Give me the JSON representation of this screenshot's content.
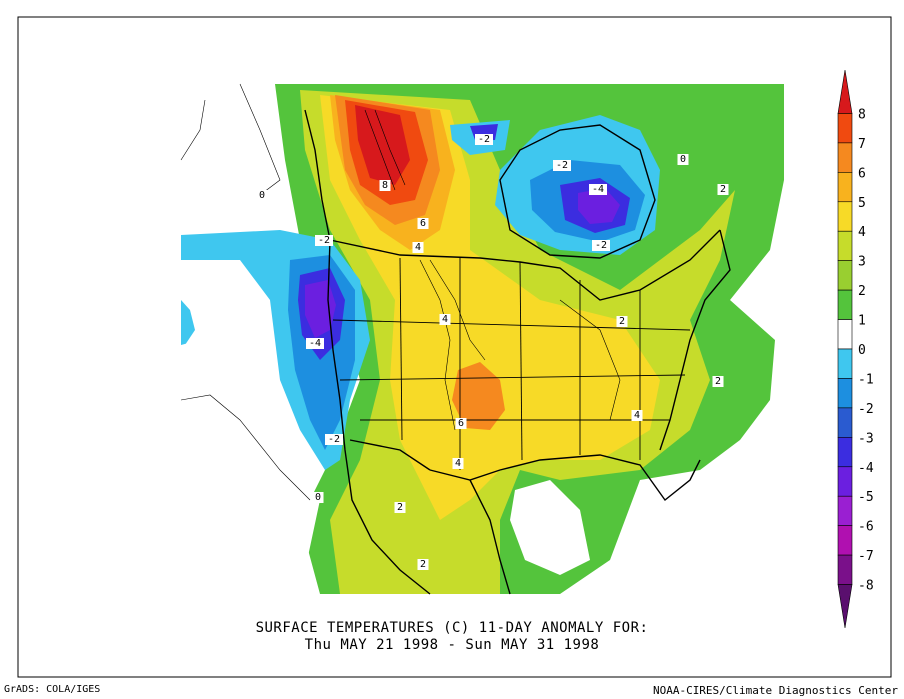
{
  "title_line1": "SURFACE TEMPERATURES (C)   11-DAY ANOMALY FOR:",
  "title_line2": "Thu MAY 21 1998 - Sun MAY 31 1998",
  "footer_left": "GrADS: COLA/IGES",
  "footer_right": "NOAA-CIRES/Climate Diagnostics Center",
  "colorbar": {
    "levels": [
      {
        "label": "8",
        "color": "#d7191c"
      },
      {
        "label": "7",
        "color": "#f04a10"
      },
      {
        "label": "6",
        "color": "#f5891f"
      },
      {
        "label": "5",
        "color": "#f8b21e"
      },
      {
        "label": "4",
        "color": "#f7da27"
      },
      {
        "label": "3",
        "color": "#c6dc2b"
      },
      {
        "label": "2",
        "color": "#99cf30"
      },
      {
        "label": "1",
        "color": "#54c43c"
      },
      {
        "label": "0",
        "color": "#ffffff"
      },
      {
        "label": "-1",
        "color": "#3fc7ef"
      },
      {
        "label": "-2",
        "color": "#1d8fe0"
      },
      {
        "label": "-3",
        "color": "#2a5bd0"
      },
      {
        "label": "-4",
        "color": "#3b2de0"
      },
      {
        "label": "-5",
        "color": "#6b1fe0"
      },
      {
        "label": "-6",
        "color": "#9a1fd2"
      },
      {
        "label": "-7",
        "color": "#b010b0"
      },
      {
        "label": "-8",
        "color": "#7a108a"
      },
      {
        "label": "",
        "color": "#5a0f6e"
      }
    ]
  },
  "contour_labels": [
    {
      "text": "8"
    },
    {
      "text": "6"
    },
    {
      "text": "4"
    },
    {
      "text": "-2"
    },
    {
      "text": "-4"
    },
    {
      "text": "-2"
    },
    {
      "text": "-2"
    },
    {
      "text": "2"
    },
    {
      "text": "-2"
    },
    {
      "text": "-4"
    },
    {
      "text": "0"
    },
    {
      "text": "4"
    },
    {
      "text": "2"
    },
    {
      "text": "6"
    },
    {
      "text": "-2"
    },
    {
      "text": "4"
    },
    {
      "text": "2"
    },
    {
      "text": "4"
    },
    {
      "text": "0"
    },
    {
      "text": "2"
    },
    {
      "text": "2"
    },
    {
      "text": "0"
    }
  ]
}
